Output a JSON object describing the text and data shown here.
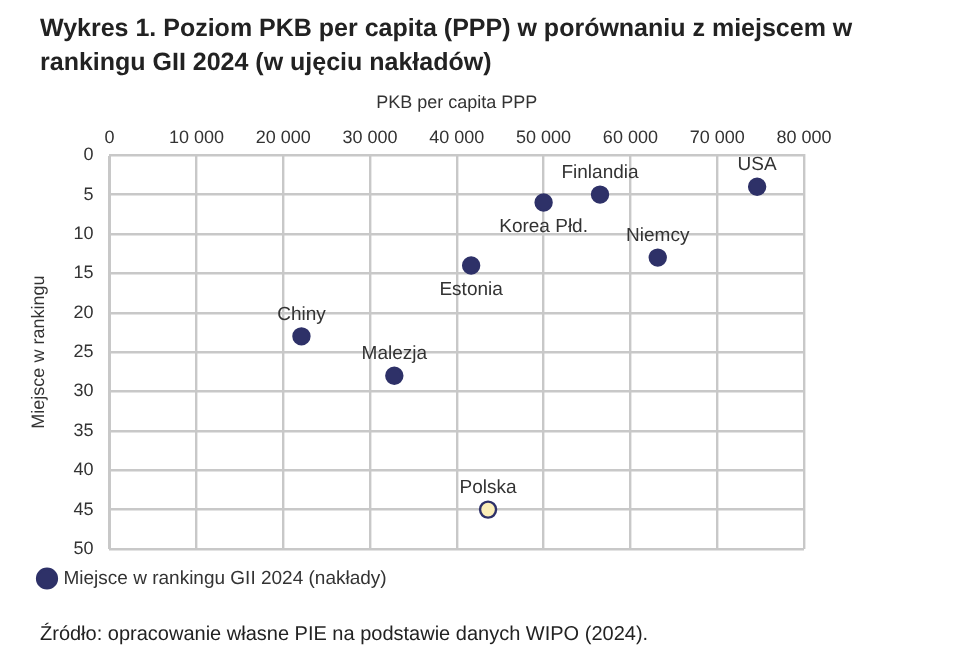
{
  "chart_data": {
    "type": "scatter",
    "title": "Wykres 1.   Poziom PKB per capita (PPP) w porównaniu z miejscem w rankingu GII 2024 (w ujęciu nakładów)",
    "xlabel": "PKB per capita PPP",
    "ylabel": "Miejsce w rankingu",
    "series": [
      {
        "name": "Miejsce w rankingu GII 2024 (nakłady)",
        "color": "#2e3168",
        "x": [
          74600,
          56500,
          50000,
          63150,
          41650,
          22100,
          32800,
          43600
        ],
        "values": [
          4,
          5,
          6,
          13,
          14,
          23,
          28,
          45
        ],
        "colors": [
          "#2e3168",
          "#2e3168",
          "#2e3168",
          "#2e3168",
          "#2e3168",
          "#2e3168",
          "#2e3168",
          "#fbeeb8"
        ]
      }
    ],
    "xlim": [
      0,
      80000
    ],
    "xticks": [
      0,
      {
        "value": 10000,
        "label": "10 000"
      },
      {
        "value": 20000,
        "label": "20 000"
      },
      {
        "value": 30000,
        "label": "30 000"
      },
      {
        "value": 40000,
        "label": "40 000"
      },
      {
        "value": 50000,
        "label": "50 000"
      },
      {
        "value": 60000,
        "label": "60 000"
      },
      {
        "value": 70000,
        "label": "70 000"
      },
      {
        "value": 80000,
        "label": "80 000"
      }
    ],
    "ylim": [
      50,
      0
    ],
    "yticks": [
      0,
      5,
      10,
      15,
      20,
      25,
      30,
      35,
      40,
      45,
      50
    ],
    "grid": true,
    "legend": "bottom left",
    "marker": "circle",
    "annotations": [
      {
        "text": "USA",
        "x": 74600,
        "y": 4
      },
      {
        "text": "Finlandia",
        "x": 56500,
        "y": 5
      },
      {
        "text": "Korea Płd.",
        "x": 50000,
        "y": 6
      },
      {
        "text": "Niemcy",
        "x": 63150,
        "y": 13
      },
      {
        "text": "Estonia",
        "x": 41650,
        "y": 14
      },
      {
        "text": "Chiny",
        "x": 22100,
        "y": 23
      },
      {
        "text": "Malezja",
        "x": 32800,
        "y": 28
      },
      {
        "text": "Polska",
        "x": 43600,
        "y": 45
      },
      "Źródło: opracowanie własne PIE na podstawie danych WIPO (2024)."
    ]
  }
}
